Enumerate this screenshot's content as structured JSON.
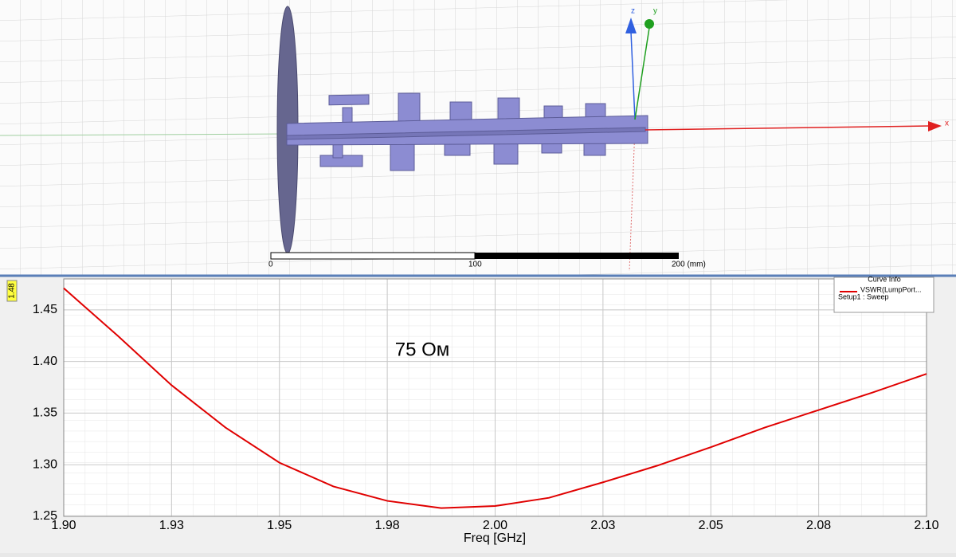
{
  "model_view": {
    "axes": [
      "x",
      "y",
      "z"
    ],
    "scale_labels": [
      "0",
      "100",
      "200 (mm)"
    ]
  },
  "chart_data": {
    "type": "line",
    "annotation": "75 Ом",
    "cursor_label": "1.48",
    "xlabel": "Freq [GHz]",
    "legend_title": "Curve Info",
    "legend_subtitle": "Setup1 : Sweep",
    "x": [
      1.9,
      1.9125,
      1.925,
      1.9375,
      1.95,
      1.9625,
      1.975,
      1.9875,
      2.0,
      2.0125,
      2.025,
      2.0375,
      2.05,
      2.0625,
      2.075,
      2.0875,
      2.1
    ],
    "series": [
      {
        "name": "VSWR(LumpPort...",
        "color": "#e00000",
        "values": [
          1.471,
          1.425,
          1.377,
          1.336,
          1.302,
          1.279,
          1.265,
          1.258,
          1.26,
          1.268,
          1.283,
          1.299,
          1.317,
          1.336,
          1.353,
          1.37,
          1.388
        ]
      }
    ],
    "xlim": [
      1.9,
      2.1
    ],
    "xticks": [
      {
        "value": 1.9,
        "label": "1.90"
      },
      {
        "value": 1.925,
        "label": "1.93"
      },
      1.95,
      {
        "value": 1.975,
        "label": "1.98"
      },
      {
        "value": 2.0,
        "label": "2.00"
      },
      {
        "value": 2.025,
        "label": "2.03"
      },
      2.05,
      {
        "value": 2.075,
        "label": "2.08"
      },
      {
        "value": 2.1,
        "label": "2.10"
      }
    ],
    "ylim": [
      1.25,
      1.48
    ],
    "yticks": [
      1.25,
      {
        "value": 1.3,
        "label": "1.30"
      },
      1.35,
      {
        "value": 1.4,
        "label": "1.40"
      },
      1.45
    ],
    "grid": true
  }
}
